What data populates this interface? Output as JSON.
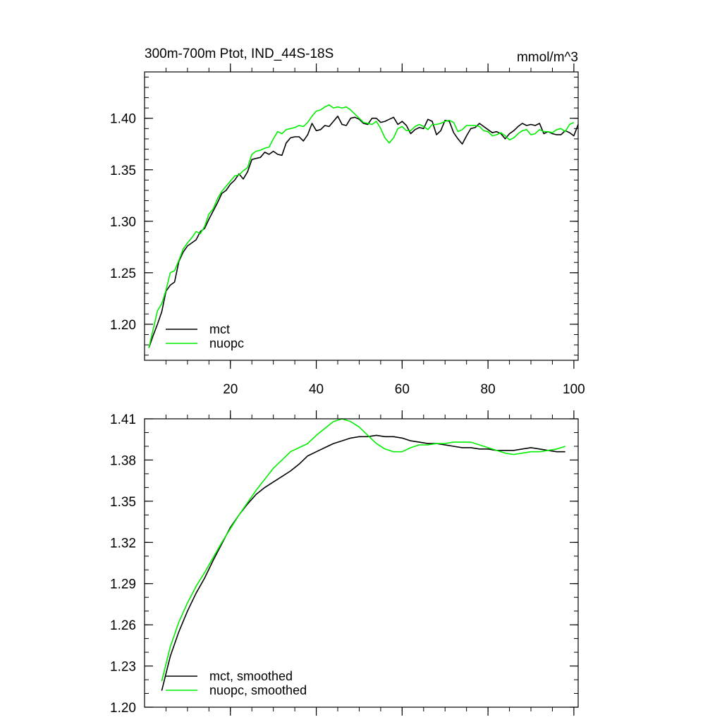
{
  "chart_data": [
    {
      "type": "line",
      "title": "300m-700m Ptot, IND_44S-18S",
      "units": "mmol/m^3",
      "xlim": [
        0,
        101
      ],
      "ylim": [
        1.165,
        1.445
      ],
      "x_ticks": [
        20,
        40,
        60,
        80,
        100
      ],
      "y_ticks": [
        1.2,
        1.25,
        1.3,
        1.35,
        1.4
      ],
      "y_tick_labels": [
        "1.20",
        "1.25",
        "1.30",
        "1.35",
        "1.40"
      ],
      "x_tick_labels": [
        "20",
        "40",
        "60",
        "80",
        "100"
      ],
      "legend": "bottom-left",
      "grid": false,
      "series": [
        {
          "name": "mct",
          "color": "#000000",
          "x": [
            1,
            2,
            3,
            4,
            5,
            6,
            7,
            8,
            9,
            10,
            11,
            12,
            13,
            14,
            15,
            16,
            17,
            18,
            19,
            20,
            21,
            22,
            23,
            24,
            25,
            26,
            27,
            28,
            29,
            30,
            31,
            32,
            33,
            34,
            35,
            36,
            37,
            38,
            39,
            40,
            41,
            42,
            43,
            44,
            45,
            46,
            47,
            48,
            49,
            50,
            51,
            52,
            53,
            54,
            55,
            56,
            57,
            58,
            59,
            60,
            61,
            62,
            63,
            64,
            65,
            66,
            67,
            68,
            69,
            70,
            71,
            72,
            73,
            74,
            75,
            76,
            77,
            78,
            79,
            80,
            81,
            82,
            83,
            84,
            85,
            86,
            87,
            88,
            89,
            90,
            91,
            92,
            93,
            94,
            95,
            96,
            97,
            98,
            99,
            100,
            101
          ],
          "values": [
            1.177,
            1.189,
            1.2,
            1.212,
            1.232,
            1.238,
            1.241,
            1.261,
            1.27,
            1.276,
            1.279,
            1.282,
            1.29,
            1.293,
            1.302,
            1.31,
            1.318,
            1.327,
            1.33,
            1.336,
            1.34,
            1.346,
            1.341,
            1.348,
            1.36,
            1.361,
            1.362,
            1.367,
            1.365,
            1.368,
            1.365,
            1.364,
            1.376,
            1.381,
            1.382,
            1.382,
            1.378,
            1.384,
            1.395,
            1.388,
            1.389,
            1.393,
            1.392,
            1.397,
            1.402,
            1.394,
            1.393,
            1.4,
            1.401,
            1.399,
            1.395,
            1.394,
            1.4,
            1.4,
            1.396,
            1.397,
            1.399,
            1.401,
            1.394,
            1.397,
            1.393,
            1.385,
            1.389,
            1.391,
            1.39,
            1.399,
            1.397,
            1.384,
            1.388,
            1.398,
            1.397,
            1.386,
            1.38,
            1.375,
            1.383,
            1.39,
            1.391,
            1.395,
            1.392,
            1.389,
            1.386,
            1.387,
            1.385,
            1.38,
            1.385,
            1.388,
            1.392,
            1.395,
            1.393,
            1.394,
            1.393,
            1.395,
            1.385,
            1.387,
            1.385,
            1.384,
            1.384,
            1.388,
            1.386,
            1.383,
            1.394
          ]
        },
        {
          "name": "nuopc",
          "color": "#00ee00",
          "x": [
            1,
            2,
            3,
            4,
            5,
            6,
            7,
            8,
            9,
            10,
            11,
            12,
            13,
            14,
            15,
            16,
            17,
            18,
            19,
            20,
            21,
            22,
            23,
            24,
            25,
            26,
            27,
            28,
            29,
            30,
            31,
            32,
            33,
            34,
            35,
            36,
            37,
            38,
            39,
            40,
            41,
            42,
            43,
            44,
            45,
            46,
            47,
            48,
            49,
            50,
            51,
            52,
            53,
            54,
            55,
            56,
            57,
            58,
            59,
            60,
            61,
            62,
            63,
            64,
            65,
            66,
            67,
            68,
            69,
            70,
            71,
            72,
            73,
            74,
            75,
            76,
            77,
            78,
            79,
            80,
            81,
            82,
            83,
            84,
            85,
            86,
            87,
            88,
            89,
            90,
            91,
            92,
            93,
            94,
            95,
            96,
            97,
            98,
            99,
            100
          ],
          "values": [
            1.177,
            1.195,
            1.213,
            1.22,
            1.233,
            1.25,
            1.252,
            1.262,
            1.273,
            1.279,
            1.284,
            1.29,
            1.288,
            1.295,
            1.307,
            1.312,
            1.322,
            1.329,
            1.334,
            1.339,
            1.344,
            1.345,
            1.349,
            1.352,
            1.365,
            1.368,
            1.369,
            1.371,
            1.372,
            1.38,
            1.387,
            1.385,
            1.389,
            1.39,
            1.391,
            1.393,
            1.392,
            1.396,
            1.402,
            1.407,
            1.408,
            1.411,
            1.413,
            1.41,
            1.411,
            1.41,
            1.411,
            1.408,
            1.404,
            1.4,
            1.396,
            1.395,
            1.394,
            1.397,
            1.39,
            1.381,
            1.376,
            1.381,
            1.39,
            1.392,
            1.388,
            1.388,
            1.392,
            1.394,
            1.392,
            1.389,
            1.394,
            1.394,
            1.395,
            1.397,
            1.398,
            1.396,
            1.387,
            1.389,
            1.393,
            1.393,
            1.393,
            1.392,
            1.388,
            1.387,
            1.383,
            1.384,
            1.386,
            1.383,
            1.379,
            1.381,
            1.385,
            1.388,
            1.389,
            1.384,
            1.385,
            1.389,
            1.387,
            1.387,
            1.386,
            1.389,
            1.39,
            1.387,
            1.394,
            1.396
          ]
        }
      ]
    },
    {
      "type": "line",
      "title": "",
      "xlim": [
        0,
        101
      ],
      "ylim": [
        1.2,
        1.41
      ],
      "x_ticks": [
        20,
        40,
        60,
        80,
        100
      ],
      "y_ticks": [
        1.2,
        1.23,
        1.26,
        1.29,
        1.32,
        1.35,
        1.38,
        1.41
      ],
      "y_tick_labels": [
        "1.20",
        "1.23",
        "1.26",
        "1.29",
        "1.32",
        "1.35",
        "1.38",
        "1.41"
      ],
      "legend": "bottom-left",
      "grid": false,
      "series": [
        {
          "name": "mct, smoothed",
          "color": "#000000",
          "x": [
            4,
            6,
            8,
            10,
            12,
            14,
            16,
            18,
            20,
            22,
            24,
            26,
            28,
            30,
            32,
            34,
            36,
            38,
            40,
            42,
            44,
            46,
            48,
            50,
            52,
            54,
            56,
            58,
            60,
            62,
            64,
            66,
            68,
            70,
            72,
            74,
            76,
            78,
            80,
            82,
            84,
            86,
            88,
            90,
            92,
            94,
            96,
            98
          ],
          "values": [
            1.212,
            1.237,
            1.255,
            1.27,
            1.283,
            1.294,
            1.307,
            1.319,
            1.331,
            1.34,
            1.348,
            1.355,
            1.36,
            1.364,
            1.368,
            1.372,
            1.377,
            1.383,
            1.386,
            1.389,
            1.392,
            1.394,
            1.396,
            1.397,
            1.397,
            1.398,
            1.397,
            1.397,
            1.396,
            1.394,
            1.393,
            1.392,
            1.392,
            1.391,
            1.39,
            1.389,
            1.389,
            1.388,
            1.388,
            1.387,
            1.387,
            1.387,
            1.388,
            1.389,
            1.388,
            1.387,
            1.386,
            1.386
          ]
        },
        {
          "name": "nuopc, smoothed",
          "color": "#00ee00",
          "x": [
            4,
            6,
            8,
            10,
            12,
            14,
            16,
            18,
            20,
            22,
            24,
            26,
            28,
            30,
            32,
            34,
            36,
            38,
            40,
            42,
            44,
            46,
            48,
            50,
            52,
            54,
            56,
            58,
            60,
            62,
            64,
            66,
            68,
            70,
            72,
            74,
            76,
            78,
            80,
            82,
            84,
            86,
            88,
            90,
            92,
            94,
            96,
            98
          ],
          "values": [
            1.219,
            1.244,
            1.262,
            1.276,
            1.288,
            1.298,
            1.309,
            1.32,
            1.33,
            1.34,
            1.349,
            1.358,
            1.366,
            1.374,
            1.38,
            1.386,
            1.389,
            1.392,
            1.398,
            1.403,
            1.408,
            1.41,
            1.408,
            1.404,
            1.398,
            1.392,
            1.388,
            1.386,
            1.386,
            1.389,
            1.391,
            1.391,
            1.392,
            1.392,
            1.393,
            1.393,
            1.393,
            1.391,
            1.389,
            1.387,
            1.385,
            1.384,
            1.385,
            1.386,
            1.386,
            1.387,
            1.388,
            1.39
          ]
        }
      ]
    }
  ]
}
